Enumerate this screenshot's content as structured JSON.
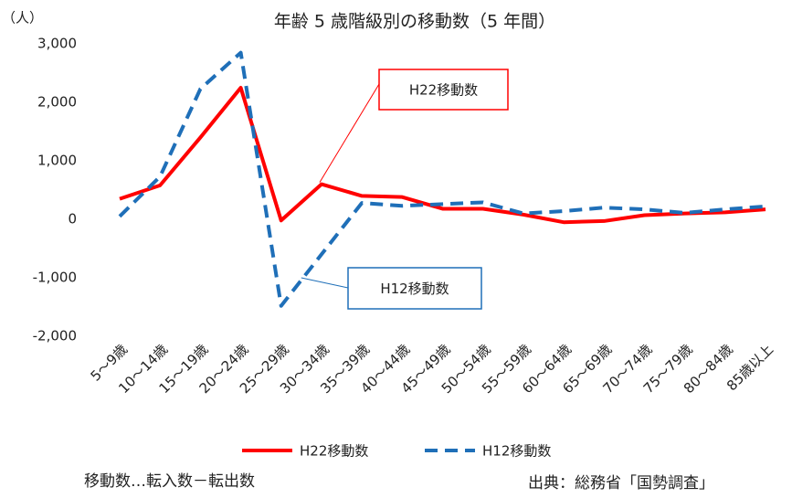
{
  "chart_data": {
    "type": "line",
    "title": "年齢 5 歳階級別の移動数（5 年間）",
    "y_label": "（人）",
    "categories": [
      "5～9歳",
      "10～14歳",
      "15～19歳",
      "20～24歳",
      "25～29歳",
      "30～34歳",
      "35～39歳",
      "40～44歳",
      "45～49歳",
      "50～54歳",
      "55～59歳",
      "60～64歳",
      "65～69歳",
      "70～74歳",
      "75～79歳",
      "80～84歳",
      "85歳以上"
    ],
    "series": [
      {
        "name": "H22移動数",
        "color": "#ff0000",
        "dashed": false,
        "values": [
          350,
          580,
          1400,
          2250,
          -20,
          600,
          400,
          380,
          180,
          180,
          80,
          -50,
          -30,
          70,
          100,
          120,
          170
        ]
      },
      {
        "name": "H12移動数",
        "color": "#1f6fb8",
        "dashed": true,
        "values": [
          50,
          730,
          2230,
          2850,
          -1480,
          -600,
          280,
          230,
          260,
          290,
          100,
          140,
          200,
          170,
          110,
          170,
          220
        ]
      }
    ],
    "ylim": [
      -2000,
      3000
    ],
    "yticks": [
      {
        "value": -2000,
        "label": "-2,000"
      },
      {
        "value": -1000,
        "label": "-1,000"
      },
      0,
      {
        "value": 1000,
        "label": "1,000"
      },
      {
        "value": 2000,
        "label": "2,000"
      },
      {
        "value": 3000,
        "label": "3,000"
      }
    ],
    "grid": false,
    "legend": "bottom",
    "annotations": [
      {
        "text": "H22移動数",
        "color": "#ff0000"
      },
      {
        "text": "H12移動数",
        "color": "#1f6fb8"
      }
    ],
    "notes": [
      "移動数…転入数－転出数",
      "出典：総務省「国勢調査」"
    ]
  }
}
